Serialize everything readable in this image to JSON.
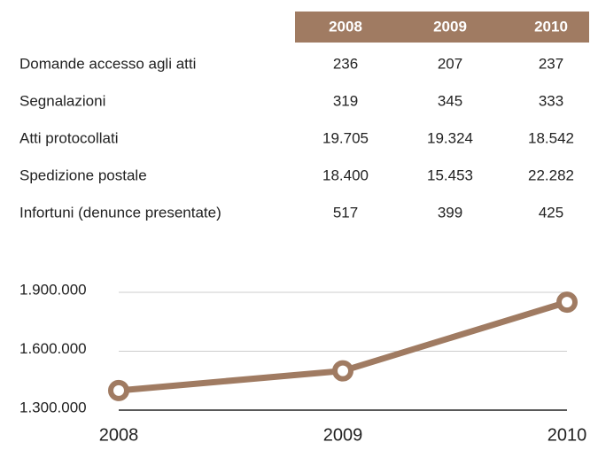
{
  "table": {
    "header": [
      "2008",
      "2009",
      "2010"
    ],
    "rows": [
      [
        "Domande accesso agli atti",
        "236",
        "207",
        "237"
      ],
      [
        "Segnalazioni",
        "319",
        "345",
        "333"
      ],
      [
        "Atti protocollati",
        "19.705",
        "19.324",
        "18.542"
      ],
      [
        "Spedizione postale",
        "18.400",
        "15.453",
        "22.282"
      ],
      [
        "Infortuni (denunce presentate)",
        "517",
        "399",
        "425"
      ]
    ]
  },
  "chart_data": {
    "type": "line",
    "categories": [
      "2008",
      "2009",
      "2010"
    ],
    "series": [
      {
        "color": "#a07b62",
        "values": [
          1400000,
          1500000,
          1850000
        ]
      }
    ],
    "ylim": [
      1300000,
      1900000
    ],
    "yticks": [
      {
        "value": 1300000,
        "label": "1.300.000"
      },
      {
        "value": 1600000,
        "label": "1.600.000"
      },
      {
        "value": 1900000,
        "label": "1.900.000"
      }
    ],
    "grid": true
  }
}
